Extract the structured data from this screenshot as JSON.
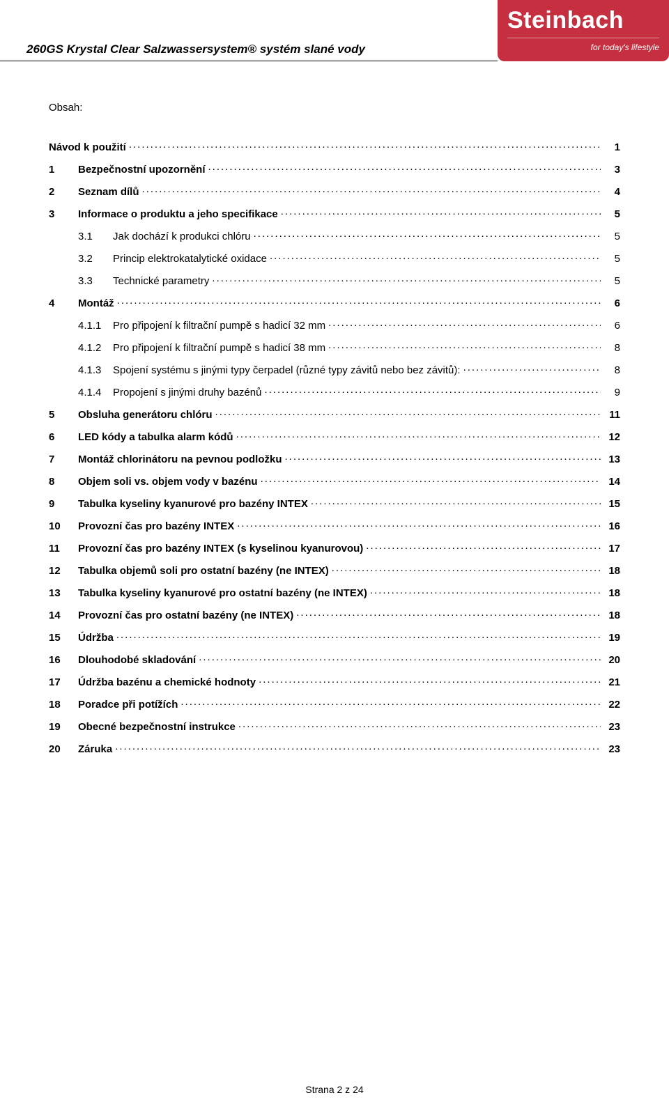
{
  "header": {
    "product_title": "260GS Krystal Clear Salzwassersystem® systém slané vody",
    "brand": "Steinbach",
    "tagline": "for today's lifestyle"
  },
  "obsah_label": "Obsah:",
  "toc": [
    {
      "num": "",
      "title": "Návod k použití",
      "page": "1",
      "sub": false,
      "first": true
    },
    {
      "num": "1",
      "title": "Bezpečnostní upozornění",
      "page": "3",
      "sub": false
    },
    {
      "num": "2",
      "title": "Seznam dílů",
      "page": "4",
      "sub": false
    },
    {
      "num": "3",
      "title": "Informace o produktu a jeho specifikace",
      "page": "5",
      "sub": false
    },
    {
      "num": "3.1",
      "title": "Jak dochází k produkci chlóru",
      "page": "5",
      "sub": true
    },
    {
      "num": "3.2",
      "title": "Princip elektrokatalytické oxidace",
      "page": "5",
      "sub": true
    },
    {
      "num": "3.3",
      "title": "Technické parametry",
      "page": "5",
      "sub": true
    },
    {
      "num": "4",
      "title": "Montáž",
      "page": "6",
      "sub": false
    },
    {
      "num": "4.1.1",
      "title": "Pro připojení k filtrační pumpě s hadicí 32 mm",
      "page": "6",
      "sub": true
    },
    {
      "num": "4.1.2",
      "title": "Pro připojení k filtrační pumpě s hadicí 38 mm",
      "page": "8",
      "sub": true
    },
    {
      "num": "4.1.3",
      "title": "Spojení systému s jinými typy čerpadel (různé typy závitů nebo bez závitů):",
      "page": "8",
      "sub": true
    },
    {
      "num": "4.1.4",
      "title": "Propojení s jinými druhy bazénů",
      "page": "9",
      "sub": true
    },
    {
      "num": "5",
      "title": "Obsluha generátoru chlóru",
      "page": "11",
      "sub": false
    },
    {
      "num": "6",
      "title": "LED kódy a tabulka alarm kódů",
      "page": "12",
      "sub": false
    },
    {
      "num": "7",
      "title": "Montáž chlorinátoru na pevnou podložku",
      "page": "13",
      "sub": false
    },
    {
      "num": "8",
      "title": "Objem soli vs. objem vody v bazénu",
      "page": "14",
      "sub": false
    },
    {
      "num": "9",
      "title": "Tabulka kyseliny kyanurové pro bazény INTEX",
      "page": "15",
      "sub": false
    },
    {
      "num": "10",
      "title": "Provozní čas pro bazény INTEX",
      "page": "16",
      "sub": false
    },
    {
      "num": "11",
      "title": "Provozní čas pro bazény INTEX (s kyselinou kyanurovou)",
      "page": "17",
      "sub": false
    },
    {
      "num": "12",
      "title": "Tabulka objemů soli pro ostatní bazény (ne INTEX)",
      "page": "18",
      "sub": false
    },
    {
      "num": "13",
      "title": "Tabulka kyseliny kyanurové pro ostatní bazény (ne INTEX)",
      "page": "18",
      "sub": false
    },
    {
      "num": "14",
      "title": "Provozní čas pro ostatní bazény (ne INTEX)",
      "page": "18",
      "sub": false
    },
    {
      "num": "15",
      "title": "Údržba",
      "page": "19",
      "sub": false
    },
    {
      "num": "16",
      "title": "Dlouhodobé skladování",
      "page": "20",
      "sub": false
    },
    {
      "num": "17",
      "title": "Údržba bazénu a chemické hodnoty",
      "page": "21",
      "sub": false
    },
    {
      "num": "18",
      "title": "Poradce při potížích",
      "page": "22",
      "sub": false
    },
    {
      "num": "19",
      "title": "Obecné bezpečnostní instrukce",
      "page": "23",
      "sub": false
    },
    {
      "num": "20",
      "title": "Záruka",
      "page": "23",
      "sub": false
    }
  ],
  "footer": "Strana 2 z 24",
  "colors": {
    "brand_bg": "#c62f3f",
    "text": "#000000",
    "page_bg": "#ffffff"
  }
}
